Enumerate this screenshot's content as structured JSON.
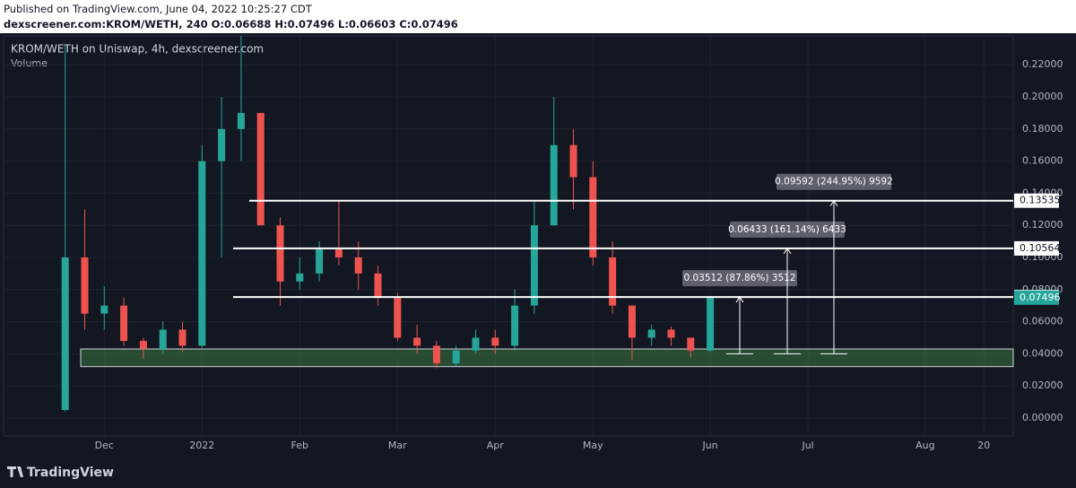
{
  "header": {
    "published": "Published on TradingView.com, June 04, 2022 10:25:27 CDT",
    "symbol_line": "dexscreener.com:KROM/WETH, 240 O:0.06688 H:0.07496 L:0.06603 C:0.07496"
  },
  "footer": {
    "brand": "TradingView"
  },
  "chart_data": {
    "type": "candlestick",
    "title": "KROM/WETH on Uniswap, 4h, dexscreener.com",
    "subtitle": "Volume",
    "categories": [
      null,
      null,
      null,
      "Dec",
      null,
      null,
      null,
      null,
      "2022",
      null,
      null,
      null,
      null,
      "Feb",
      null,
      null,
      null,
      null,
      "Mar",
      null,
      null,
      null,
      null,
      "Apr",
      null,
      null,
      null,
      null,
      "May",
      null,
      null,
      null,
      null,
      null,
      "Jun",
      null,
      null,
      null,
      null,
      "Jul",
      null,
      null,
      null,
      null,
      null,
      "Aug",
      null,
      null,
      "20",
      null
    ],
    "open": [
      null,
      0.005,
      0.1,
      0.065,
      0.07,
      0.048,
      0.043,
      0.055,
      0.045,
      0.16,
      0.18,
      0.19,
      0.12,
      0.085,
      0.09,
      0.105,
      0.1,
      0.09,
      0.075,
      0.05,
      0.045,
      0.034,
      0.042,
      0.05,
      0.045,
      0.07,
      0.12,
      0.17,
      0.15,
      0.1,
      0.07,
      0.05,
      0.055,
      0.05,
      0.042,
      null,
      null,
      null,
      null,
      null,
      null,
      null,
      null,
      null,
      null,
      null,
      null,
      null,
      null,
      null
    ],
    "high": [
      null,
      0.232,
      0.13,
      0.082,
      0.075,
      0.05,
      0.06,
      0.06,
      0.17,
      0.2,
      0.238,
      0.19,
      0.125,
      0.1,
      0.11,
      0.135,
      0.11,
      0.095,
      0.078,
      0.058,
      0.048,
      0.045,
      0.055,
      0.055,
      0.08,
      0.135,
      0.2,
      0.18,
      0.16,
      0.11,
      0.07,
      0.058,
      0.057,
      0.05,
      0.075,
      null,
      null,
      null,
      null,
      null,
      null,
      null,
      null,
      null,
      null,
      null,
      null,
      null,
      null,
      null
    ],
    "low": [
      null,
      0.004,
      0.055,
      0.055,
      0.045,
      0.037,
      0.04,
      0.041,
      0.044,
      0.1,
      0.16,
      0.12,
      0.07,
      0.08,
      0.085,
      0.095,
      0.08,
      0.07,
      0.048,
      0.04,
      0.031,
      0.032,
      0.04,
      0.04,
      0.042,
      0.065,
      0.12,
      0.13,
      0.095,
      0.065,
      0.036,
      0.045,
      0.045,
      0.038,
      0.041,
      null,
      null,
      null,
      null,
      null,
      null,
      null,
      null,
      null,
      null,
      null,
      null,
      null,
      null,
      null
    ],
    "close": [
      null,
      0.1,
      0.065,
      0.07,
      0.048,
      0.043,
      0.055,
      0.045,
      0.16,
      0.18,
      0.19,
      0.12,
      0.085,
      0.09,
      0.105,
      0.1,
      0.09,
      0.075,
      0.05,
      0.045,
      0.034,
      0.042,
      0.05,
      0.045,
      0.07,
      0.12,
      0.17,
      0.15,
      0.1,
      0.07,
      0.05,
      0.055,
      0.05,
      0.042,
      0.07496,
      null,
      null,
      null,
      null,
      null,
      null,
      null,
      null,
      null,
      null,
      null,
      null,
      null,
      null,
      null
    ],
    "up_color": "#26a69a",
    "down_color": "#ef5350",
    "ylim": [
      -0.0112,
      0.238
    ],
    "yticks": [
      {
        "value": 0,
        "label": "0.00000"
      },
      {
        "value": 0.02,
        "label": "0.02000"
      },
      {
        "value": 0.04,
        "label": "0.04000"
      },
      {
        "value": 0.06,
        "label": "0.06000"
      },
      {
        "value": 0.08,
        "label": "0.08000"
      },
      {
        "value": 0.1,
        "label": "0.10000"
      },
      {
        "value": 0.12,
        "label": "0.12000"
      },
      {
        "value": 0.14,
        "label": "0.14000"
      },
      {
        "value": 0.16,
        "label": "0.16000"
      },
      {
        "value": 0.18,
        "label": "0.18000"
      },
      {
        "value": 0.2,
        "label": "0.20000"
      },
      {
        "value": 0.22,
        "label": "0.22000"
      }
    ],
    "grid": true,
    "levels": [
      0.13535,
      0.10564,
      0.07536
    ],
    "last_price": 0.07496,
    "zone": [
      0.032,
      0.043
    ],
    "measurements": [
      {
        "from": 0.04,
        "to": 0.07536,
        "label": "0.03512 (87.86%) 3512"
      },
      {
        "from": 0.04,
        "to": 0.10564,
        "label": "0.06433 (161.14%) 6433"
      },
      {
        "from": 0.04,
        "to": 0.13535,
        "label": "0.09592 (244.95%) 9592"
      }
    ]
  }
}
